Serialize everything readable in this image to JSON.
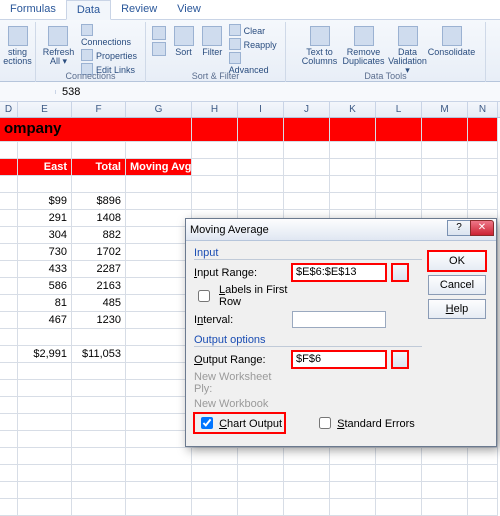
{
  "ribbon": {
    "tabs": [
      "Formulas",
      "Data",
      "Review",
      "View"
    ],
    "active_tab": "Data",
    "groups": {
      "get_external": {
        "title": "",
        "btns": [
          "sting\nections"
        ]
      },
      "connections": {
        "title": "Connections",
        "refresh": "Refresh\nAll ▾",
        "items": [
          "Connections",
          "Properties",
          "Edit Links"
        ]
      },
      "sort_filter": {
        "title": "Sort & Filter",
        "sort_az": "A↓Z",
        "sort": "Sort",
        "filter": "Filter",
        "items": [
          "Clear",
          "Reapply",
          "Advanced"
        ]
      },
      "data_tools": {
        "title": "Data Tools",
        "btns": [
          "Text to\nColumns",
          "Remove\nDuplicates",
          "Data\nValidation ▾",
          "Consolidate"
        ]
      }
    }
  },
  "formula_bar": {
    "name": "",
    "value": "538"
  },
  "columns": [
    "D",
    "E",
    "F",
    "G",
    "H",
    "I",
    "J",
    "K",
    "L",
    "M",
    "N"
  ],
  "title": "ompany",
  "headers": {
    "e": "East",
    "f": "Total",
    "g": "Moving Avg."
  },
  "rows": [
    {
      "e": "$99",
      "f": "$896"
    },
    {
      "e": "291",
      "f": "1408"
    },
    {
      "e": "304",
      "f": "882"
    },
    {
      "e": "730",
      "f": "1702"
    },
    {
      "e": "433",
      "f": "2287"
    },
    {
      "e": "586",
      "f": "2163"
    },
    {
      "e": "81",
      "f": "485"
    },
    {
      "e": "467",
      "f": "1230"
    }
  ],
  "totals": {
    "e": "$2,991",
    "f": "$11,053"
  },
  "dialog": {
    "title": "Moving Average",
    "input_section": "Input",
    "input_range_label": "Input Range:",
    "input_range_value": "$E$6:$E$13",
    "labels_first_row": "Labels in First Row",
    "interval_label": "Interval:",
    "interval_value": "",
    "output_section": "Output options",
    "output_range_label": "Output Range:",
    "output_range_value": "$F$6",
    "new_ws": "New Worksheet Ply:",
    "new_wb": "New Workbook",
    "chart_output": "Chart Output",
    "chart_output_checked": true,
    "standard_errors": "Standard Errors",
    "ok": "OK",
    "cancel": "Cancel",
    "help": "Help"
  },
  "colors": {
    "red": "#ff0000",
    "ribbon_bg": "#e8eef7",
    "dialog_bg": "#f0f0f0"
  }
}
